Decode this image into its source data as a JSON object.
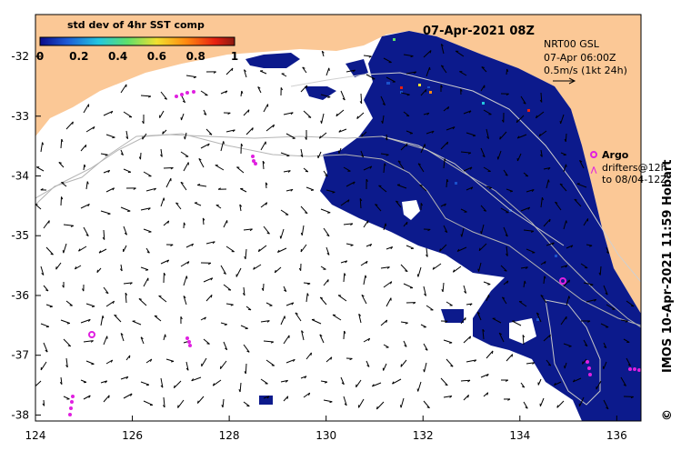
{
  "title": "07-Apr-2021 08Z",
  "colorbar": {
    "label": "std dev of 4hr SST comp",
    "tick_labels": [
      "0",
      "0.2",
      "0.4",
      "0.6",
      "0.8",
      "1"
    ],
    "colors": [
      "#0a0a8a",
      "#1d5bd6",
      "#22c6e0",
      "#5fe06a",
      "#f0e030",
      "#ff8a10",
      "#e82010",
      "#8a1a10"
    ]
  },
  "current_info": {
    "line1": "NRT00 GSL",
    "line2": "07-Apr 06:00Z",
    "line3": "0.5m/s (1kt 24h)"
  },
  "argo": {
    "label": "Argo",
    "drifters_line1": "drifters@12h",
    "drifters_line2": "to 08/04-12Z"
  },
  "credit": "IMOS 10-Apr-2021 11:59 Hobart",
  "copyright_symbol": "©",
  "axes": {
    "x_ticks": [
      "124",
      "126",
      "128",
      "130",
      "132",
      "134",
      "136"
    ],
    "y_ticks": [
      "-32",
      "-33",
      "-34",
      "-35",
      "-36",
      "-37",
      "-38"
    ],
    "xlim": [
      124,
      136.5
    ],
    "ylim": [
      -38.1,
      -31.3
    ]
  },
  "colors": {
    "land": "#fbc896",
    "ocean": "#ffffff",
    "sst_data": "#0c1a8c",
    "contour": "#b4b4b4",
    "argo": "#e020e0"
  }
}
